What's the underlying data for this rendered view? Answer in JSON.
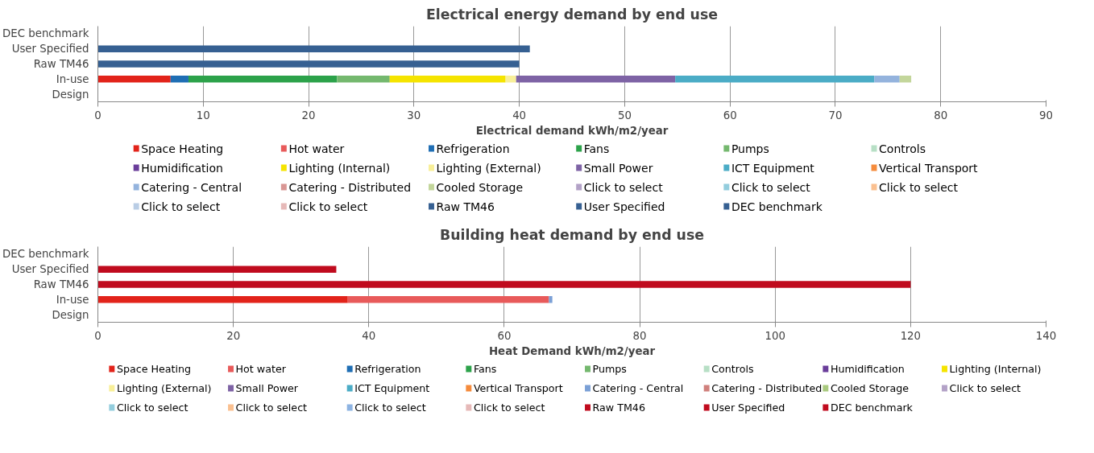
{
  "chart_data": [
    {
      "type": "bar",
      "orientation": "horizontal",
      "stacked": true,
      "title": "Electrical energy demand by end use",
      "xlabel": "Electrical demand kWh/m2/year",
      "categories": [
        "DEC benchmark",
        "User Specified",
        "Raw TM46",
        "In-use",
        "Design"
      ],
      "xlim": [
        0,
        90
      ],
      "xticks": [
        0,
        10,
        20,
        30,
        40,
        50,
        60,
        70,
        80,
        90
      ],
      "grid": "x",
      "legend": "bottom",
      "series": [
        {
          "name": "Space Heating",
          "color": "#e2231a",
          "values": [
            null,
            null,
            null,
            6.9,
            null
          ]
        },
        {
          "name": "Hot water",
          "color": "#e85a5a",
          "values": [
            null,
            null,
            null,
            null,
            null
          ]
        },
        {
          "name": "Refrigeration",
          "color": "#1f6eb4",
          "values": [
            null,
            null,
            null,
            1.7,
            null
          ]
        },
        {
          "name": "Fans",
          "color": "#2ca24a",
          "values": [
            null,
            null,
            null,
            14.1,
            null
          ]
        },
        {
          "name": "Pumps",
          "color": "#74b86e",
          "values": [
            null,
            null,
            null,
            5.0,
            null
          ]
        },
        {
          "name": "Controls",
          "color": "#b7dfc5",
          "values": [
            null,
            null,
            null,
            null,
            null
          ]
        },
        {
          "name": "Humidification",
          "color": "#6a3d9a",
          "values": [
            null,
            null,
            null,
            null,
            null
          ]
        },
        {
          "name": "Lighting (Internal)",
          "color": "#f5e400",
          "values": [
            null,
            null,
            null,
            11.0,
            null
          ]
        },
        {
          "name": "Lighting (External)",
          "color": "#f8ef98",
          "values": [
            null,
            null,
            null,
            1.0,
            null
          ]
        },
        {
          "name": "Small Power",
          "color": "#7e63a5",
          "values": [
            null,
            null,
            null,
            15.1,
            null
          ]
        },
        {
          "name": "ICT Equipment",
          "color": "#4bacc6",
          "values": [
            null,
            null,
            null,
            18.9,
            null
          ]
        },
        {
          "name": "Vertical Transport",
          "color": "#f58b3c",
          "values": [
            null,
            null,
            null,
            null,
            null
          ]
        },
        {
          "name": "Catering - Central",
          "color": "#94b3dd",
          "values": [
            null,
            null,
            null,
            2.4,
            null
          ]
        },
        {
          "name": "Catering - Distributed",
          "color": "#d99694",
          "values": [
            null,
            null,
            null,
            null,
            null
          ]
        },
        {
          "name": "Cooled Storage",
          "color": "#c3d69b",
          "values": [
            null,
            null,
            null,
            1.1,
            null
          ]
        },
        {
          "name": "Click to select",
          "color": "#b3a2c7",
          "values": [
            null,
            null,
            null,
            null,
            null
          ]
        },
        {
          "name": "Click to select",
          "color": "#93cddd",
          "values": [
            null,
            null,
            null,
            null,
            null
          ]
        },
        {
          "name": "Click to select",
          "color": "#fac090",
          "values": [
            null,
            null,
            null,
            null,
            null
          ]
        },
        {
          "name": "Click to select",
          "color": "#b9cde5",
          "values": [
            null,
            null,
            null,
            null,
            null
          ]
        },
        {
          "name": "Click to select",
          "color": "#e6b9b8",
          "values": [
            null,
            null,
            null,
            null,
            null
          ]
        },
        {
          "name": "Raw TM46",
          "color": "#366092",
          "values": [
            null,
            null,
            40,
            null,
            null
          ]
        },
        {
          "name": "User Specified",
          "color": "#366092",
          "values": [
            null,
            41,
            null,
            null,
            null
          ]
        },
        {
          "name": "DEC benchmark",
          "color": "#366092",
          "values": [
            null,
            null,
            null,
            null,
            null
          ]
        }
      ]
    },
    {
      "type": "bar",
      "orientation": "horizontal",
      "stacked": true,
      "title": "Building heat demand by end use",
      "xlabel": "Heat Demand kWh/m2/year",
      "categories": [
        "DEC benchmark",
        "User Specified",
        "Raw TM46",
        "In-use",
        "Design"
      ],
      "xlim": [
        0,
        140
      ],
      "xticks": [
        0,
        20,
        40,
        60,
        80,
        100,
        120,
        140
      ],
      "grid": "x",
      "legend": "bottom",
      "series": [
        {
          "name": "Space Heating",
          "color": "#e2231a",
          "values": [
            null,
            null,
            null,
            36.9,
            null
          ]
        },
        {
          "name": "Hot water",
          "color": "#e85a5a",
          "values": [
            null,
            null,
            null,
            29.7,
            null
          ]
        },
        {
          "name": "Refrigeration",
          "color": "#1f6eb4",
          "values": [
            null,
            null,
            null,
            null,
            null
          ]
        },
        {
          "name": "Fans",
          "color": "#2ca24a",
          "values": [
            null,
            null,
            null,
            null,
            null
          ]
        },
        {
          "name": "Pumps",
          "color": "#74b86e",
          "values": [
            null,
            null,
            null,
            null,
            null
          ]
        },
        {
          "name": "Controls",
          "color": "#b7dfc5",
          "values": [
            null,
            null,
            null,
            null,
            null
          ]
        },
        {
          "name": "Humidification",
          "color": "#6a3d9a",
          "values": [
            null,
            null,
            null,
            null,
            null
          ]
        },
        {
          "name": "Lighting (Internal)",
          "color": "#f5e400",
          "values": [
            null,
            null,
            null,
            null,
            null
          ]
        },
        {
          "name": "Lighting (External)",
          "color": "#f8ef98",
          "values": [
            null,
            null,
            null,
            null,
            null
          ]
        },
        {
          "name": "Small Power",
          "color": "#7e63a5",
          "values": [
            null,
            null,
            null,
            null,
            null
          ]
        },
        {
          "name": "ICT Equipment",
          "color": "#4bacc6",
          "values": [
            null,
            null,
            null,
            null,
            null
          ]
        },
        {
          "name": "Vertical Transport",
          "color": "#f58b3c",
          "values": [
            null,
            null,
            null,
            null,
            null
          ]
        },
        {
          "name": "Catering - Central",
          "color": "#7ba0d6",
          "values": [
            null,
            null,
            null,
            0.5,
            null
          ]
        },
        {
          "name": "Catering - Distributed",
          "color": "#d0807c",
          "values": [
            null,
            null,
            null,
            null,
            null
          ]
        },
        {
          "name": "Cooled Storage",
          "color": "#a9c97e",
          "values": [
            null,
            null,
            null,
            null,
            null
          ]
        },
        {
          "name": "Click to select",
          "color": "#b3a2c7",
          "values": [
            null,
            null,
            null,
            null,
            null
          ]
        },
        {
          "name": "Click to select",
          "color": "#93cddd",
          "values": [
            null,
            null,
            null,
            null,
            null
          ]
        },
        {
          "name": "Click to select",
          "color": "#fac090",
          "values": [
            null,
            null,
            null,
            null,
            null
          ]
        },
        {
          "name": "Click to select",
          "color": "#8db3e2",
          "values": [
            null,
            null,
            null,
            null,
            null
          ]
        },
        {
          "name": "Click to select",
          "color": "#e6b9b8",
          "values": [
            null,
            null,
            null,
            null,
            null
          ]
        },
        {
          "name": "Raw TM46",
          "color": "#c00b1e",
          "values": [
            null,
            null,
            120,
            null,
            null
          ]
        },
        {
          "name": "User Specified",
          "color": "#c00b1e",
          "values": [
            null,
            35.2,
            null,
            null,
            null
          ]
        },
        {
          "name": "DEC benchmark",
          "color": "#c00b1e",
          "values": [
            null,
            null,
            null,
            null,
            null
          ]
        }
      ]
    }
  ]
}
